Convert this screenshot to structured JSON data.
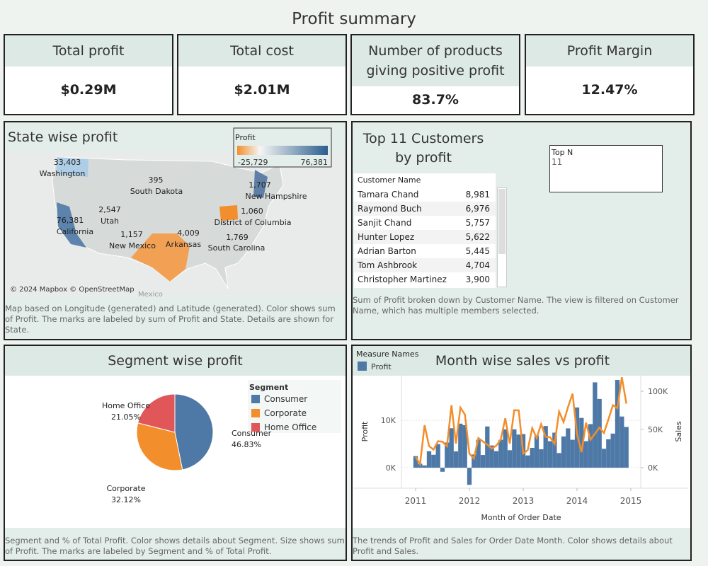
{
  "title": "Profit summary",
  "kpis": [
    {
      "label": "Total profit",
      "value": "$0.29M"
    },
    {
      "label": "Total cost",
      "value": "$2.01M"
    },
    {
      "label": "Number of products giving positive profit",
      "value": "83.7%"
    },
    {
      "label": "Profit Margin",
      "value": "12.47%"
    }
  ],
  "map": {
    "title": "State wise profit",
    "legend_title": "Profit",
    "legend_min": "-25,729",
    "legend_max": "76,381",
    "labels": [
      {
        "value": "33,403",
        "state": "Washington"
      },
      {
        "value": "395",
        "state": "South Dakota"
      },
      {
        "value": "2,547",
        "state": "Utah"
      },
      {
        "value": "76,381",
        "state": "California"
      },
      {
        "value": "1,157",
        "state": "New Mexico"
      },
      {
        "value": "4,009",
        "state": "Arkansas"
      },
      {
        "value": "1,769",
        "state": "South Carolina"
      },
      {
        "value": "1,060",
        "state": "District of Columbia"
      },
      {
        "value": "1,707",
        "state": "New Hampshire"
      }
    ],
    "attribution": "© 2024 Mapbox © OpenStreetMap",
    "country": "Mexico",
    "note": "Map based on Longitude (generated) and Latitude (generated).  Color shows sum of Profit.  The marks are labeled by sum of Profit and State.  Details are shown for State."
  },
  "customers": {
    "title": "Top 11 Customers by profit",
    "column": "Customer Name",
    "rows": [
      [
        "Tamara Chand",
        "8,981"
      ],
      [
        "Raymond Buch",
        "6,976"
      ],
      [
        "Sanjit Chand",
        "5,757"
      ],
      [
        "Hunter Lopez",
        "5,622"
      ],
      [
        "Adrian Barton",
        "5,445"
      ],
      [
        "Tom Ashbrook",
        "4,704"
      ],
      [
        "Christopher Martinez",
        "3,900"
      ]
    ],
    "filter": {
      "label": "Top N",
      "value": "11"
    },
    "note": "Sum of Profit broken down by Customer Name. The view is filtered on Customer Name, which has multiple members selected."
  },
  "chart_data": [
    {
      "type": "pie",
      "title": "Segment wise profit",
      "legend_title": "Segment",
      "categories": [
        "Consumer",
        "Corporate",
        "Home Office"
      ],
      "values": [
        46.83,
        32.12,
        21.05
      ],
      "value_labels": [
        "46.83%",
        "32.12%",
        "21.05%"
      ],
      "colors": [
        "#4e79a7",
        "#f28e2b",
        "#e15759"
      ],
      "note": "Segment and % of Total Profit.  Color shows details about Segment.  Size shows sum of Profit.  The marks are labeled by Segment and % of Total Profit."
    },
    {
      "type": "combo",
      "title": "Month wise sales vs profit",
      "legend_title": "Measure Names",
      "xlabel": "Month of Order Date",
      "ylabel": "Profit",
      "y2label": "Sales",
      "x": [
        2011,
        2011.083,
        2011.167,
        2011.25,
        2011.333,
        2011.417,
        2011.5,
        2011.583,
        2011.667,
        2011.75,
        2011.833,
        2011.917,
        2012,
        2012.083,
        2012.167,
        2012.25,
        2012.333,
        2012.417,
        2012.5,
        2012.583,
        2012.667,
        2012.75,
        2012.833,
        2012.917,
        2013,
        2013.083,
        2013.167,
        2013.25,
        2013.333,
        2013.417,
        2013.5,
        2013.583,
        2013.667,
        2013.75,
        2013.833,
        2013.917,
        2014,
        2014.083,
        2014.167,
        2014.25,
        2014.333,
        2014.417,
        2014.5,
        2014.583,
        2014.667,
        2014.75,
        2014.833,
        2014.917
      ],
      "xlim": [
        2010.737,
        2015.184
      ],
      "xticks": [
        2011,
        2012,
        2013,
        2014,
        2015
      ],
      "ylim": [
        -4300,
        19400
      ],
      "yticks": [
        {
          "value": 0,
          "label": "0K"
        },
        {
          "value": 10000,
          "label": "10K"
        }
      ],
      "y2lim": [
        -26900,
        120400
      ],
      "y2ticks": [
        {
          "value": 0,
          "label": "0K"
        },
        {
          "value": 50000,
          "label": "50K"
        },
        {
          "value": 100000,
          "label": "100K"
        }
      ],
      "series": [
        {
          "name": "Profit",
          "type": "bar",
          "color": "#4e79a7",
          "values": [
            2450,
            860,
            500,
            3490,
            2740,
            4980,
            -840,
            5320,
            8330,
            3450,
            9290,
            8980,
            -3600,
            2800,
            5900,
            2700,
            8700,
            4700,
            3500,
            5900,
            8100,
            3700,
            8100,
            7000,
            7100,
            2600,
            4200,
            6800,
            3900,
            8800,
            5600,
            7400,
            3100,
            6600,
            8300,
            5900,
            12700,
            10500,
            5600,
            9200,
            18000,
            14500,
            4000,
            6000,
            7200,
            18500,
            10800,
            8600
          ]
        },
        {
          "type": "line",
          "color": "#f28e2b",
          "axis": "y2",
          "values": [
            14000,
            4500,
            55700,
            28300,
            23600,
            34600,
            33900,
            27900,
            81800,
            31500,
            78600,
            69500,
            18200,
            11900,
            38700,
            34200,
            30100,
            24800,
            28800,
            36800,
            64600,
            31400,
            75200,
            74900,
            18500,
            22900,
            51700,
            38800,
            56900,
            40300,
            39800,
            31100,
            73400,
            59700,
            79400,
            96900,
            44000,
            20300,
            58900,
            36500,
            44300,
            52500,
            45300,
            63100,
            81800,
            77800,
            118400,
            83800
          ]
        }
      ],
      "note": "The trends of Profit and Sales for Order Date Month.  Color shows details about Profit and Sales."
    }
  ]
}
